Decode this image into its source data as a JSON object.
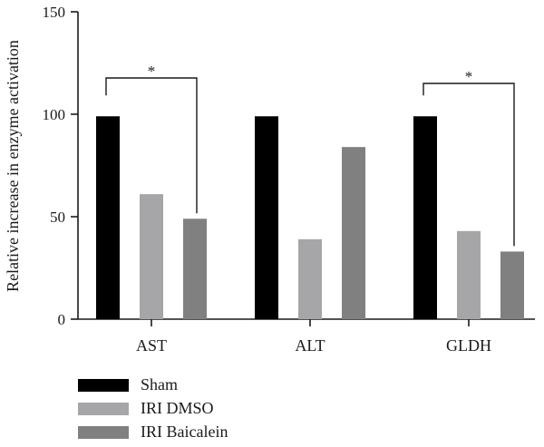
{
  "chart_data": {
    "type": "bar",
    "categories": [
      "AST",
      "ALT",
      "GLDH"
    ],
    "series": [
      {
        "name": "Sham",
        "values": [
          99,
          99,
          99
        ],
        "color": "#000000"
      },
      {
        "name": "IRI DMSO",
        "values": [
          61,
          39,
          43
        ],
        "color": "#a6a6a8"
      },
      {
        "name": "IRI Baicalein",
        "values": [
          49,
          84,
          33
        ],
        "color": "#808080"
      }
    ],
    "ylabel": "Relative increase in enzyme activation",
    "xlabel": "",
    "ylim": [
      0,
      150
    ],
    "yticks": [
      0,
      50,
      100,
      150
    ],
    "legend_position": "bottom-left",
    "grid": false,
    "annotations": [
      {
        "text": "*",
        "category": "AST",
        "from_series": 0,
        "to_series": 2
      },
      {
        "text": "*",
        "category": "GLDH",
        "from_series": 0,
        "to_series": 2
      }
    ]
  }
}
